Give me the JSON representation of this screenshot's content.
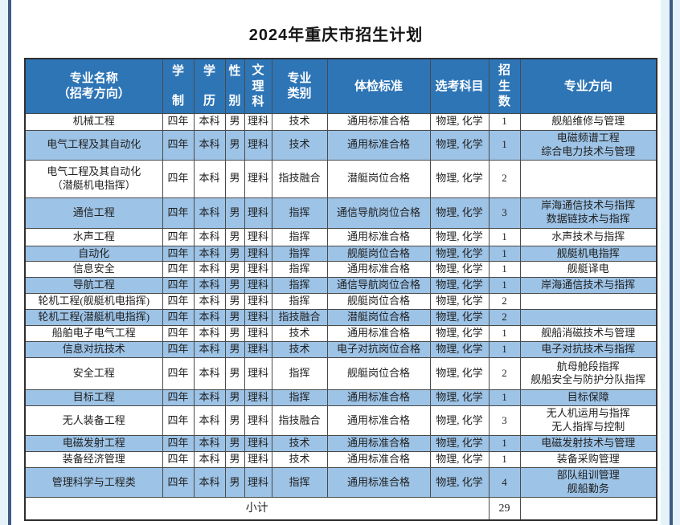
{
  "page": {
    "title": "2024年重庆市招生计划"
  },
  "table": {
    "columns": [
      "专业名称\n（招考方向）",
      "学\n制",
      "学\n历",
      "性\n别",
      "文\n理\n科",
      "专业\n类别",
      "体检标准",
      "选考科目",
      "招\n生\n数",
      "专业方向"
    ],
    "rows": [
      [
        "机械工程",
        "四年",
        "本科",
        "男",
        "理科",
        "技术",
        "通用标准合格",
        "物理, 化学",
        "1",
        "舰船维修与管理"
      ],
      [
        "电气工程及其自动化",
        "四年",
        "本科",
        "男",
        "理科",
        "技术",
        "通用标准合格",
        "物理, 化学",
        "1",
        "电磁频谱工程\n综合电力技术与管理"
      ],
      [
        "电气工程及其自动化\n（潜艇机电指挥）",
        "四年",
        "本科",
        "男",
        "理科",
        "指技融合",
        "潜艇岗位合格",
        "物理, 化学",
        "2",
        ""
      ],
      [
        "通信工程",
        "四年",
        "本科",
        "男",
        "理科",
        "指挥",
        "通信导航岗位合格",
        "物理, 化学",
        "3",
        "岸海通信技术与指挥\n数据链技术与指挥"
      ],
      [
        "水声工程",
        "四年",
        "本科",
        "男",
        "理科",
        "指挥",
        "通用标准合格",
        "物理, 化学",
        "1",
        "水声技术与指挥"
      ],
      [
        "自动化",
        "四年",
        "本科",
        "男",
        "理科",
        "指挥",
        "舰艇岗位合格",
        "物理, 化学",
        "1",
        "舰艇机电指挥"
      ],
      [
        "信息安全",
        "四年",
        "本科",
        "男",
        "理科",
        "指挥",
        "通用标准合格",
        "物理, 化学",
        "1",
        "舰艇译电"
      ],
      [
        "导航工程",
        "四年",
        "本科",
        "男",
        "理科",
        "指挥",
        "通信导航岗位合格",
        "物理, 化学",
        "1",
        "岸海通信技术与指挥"
      ],
      [
        "轮机工程(舰艇机电指挥)",
        "四年",
        "本科",
        "男",
        "理科",
        "指挥",
        "舰艇岗位合格",
        "物理, 化学",
        "2",
        ""
      ],
      [
        "轮机工程(潜艇机电指挥)",
        "四年",
        "本科",
        "男",
        "理科",
        "指技融合",
        "潜艇岗位合格",
        "物理, 化学",
        "2",
        ""
      ],
      [
        "船舶电子电气工程",
        "四年",
        "本科",
        "男",
        "理科",
        "技术",
        "通用标准合格",
        "物理, 化学",
        "1",
        "舰船消磁技术与管理"
      ],
      [
        "信息对抗技术",
        "四年",
        "本科",
        "男",
        "理科",
        "技术",
        "电子对抗岗位合格",
        "物理, 化学",
        "1",
        "电子对抗技术与指挥"
      ],
      [
        "安全工程",
        "四年",
        "本科",
        "男",
        "理科",
        "指挥",
        "舰艇岗位合格",
        "物理, 化学",
        "2",
        "航母舱段指挥\n舰船安全与防护分队指挥"
      ],
      [
        "目标工程",
        "四年",
        "本科",
        "男",
        "理科",
        "指挥",
        "通用标准合格",
        "物理, 化学",
        "1",
        "目标保障"
      ],
      [
        "无人装备工程",
        "四年",
        "本科",
        "男",
        "理科",
        "指技融合",
        "通用标准合格",
        "物理, 化学",
        "3",
        "无人机运用与指挥\n无人指挥与控制"
      ],
      [
        "电磁发射工程",
        "四年",
        "本科",
        "男",
        "理科",
        "技术",
        "通用标准合格",
        "物理, 化学",
        "1",
        "电磁发射技术与管理"
      ],
      [
        "装备经济管理",
        "四年",
        "本科",
        "男",
        "理科",
        "技术",
        "通用标准合格",
        "物理, 化学",
        "1",
        "装备采购管理"
      ],
      [
        "管理科学与工程类",
        "四年",
        "本科",
        "男",
        "理科",
        "指挥",
        "通用标准合格",
        "物理, 化学",
        "4",
        "部队组训管理\n舰船勤务"
      ]
    ],
    "footer": {
      "label": "小计",
      "total": "29"
    }
  },
  "colors": {
    "header_bg": "#2e75b6",
    "header_text": "#ffffff",
    "row_alt": "#9dc3e6",
    "body_text": "#1f1f1f",
    "grid_line": "#4a4a4a",
    "frame_line": "#3e5c82",
    "page_bg": "#e6f2fa"
  }
}
